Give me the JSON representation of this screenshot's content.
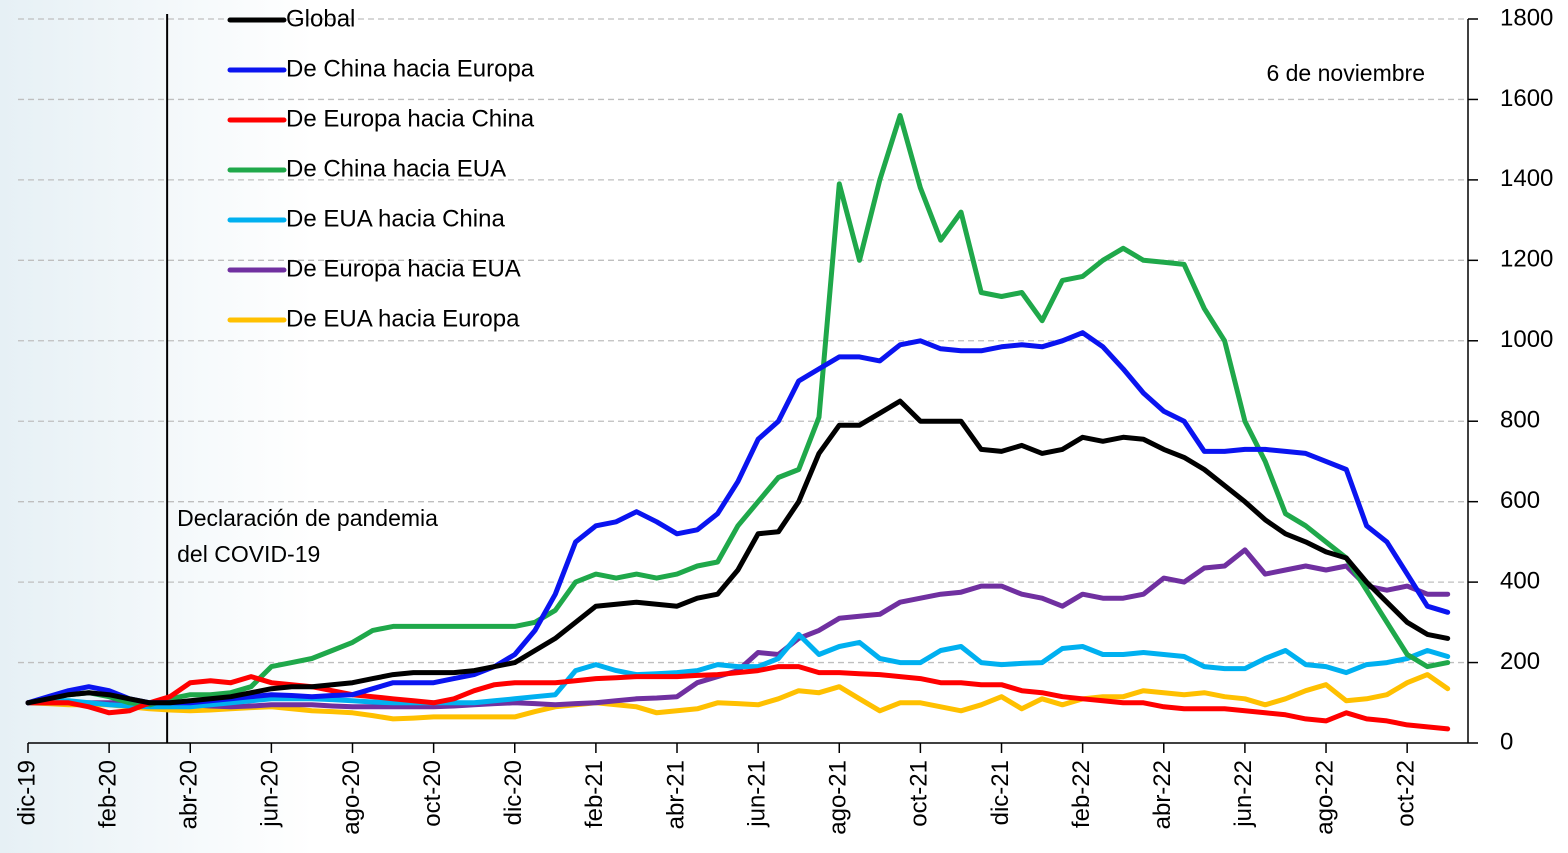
{
  "chart_data": {
    "type": "line",
    "x": [
      0,
      0.5,
      1,
      1.5,
      2,
      2.5,
      3,
      3.5,
      4,
      4.5,
      5,
      5.5,
      6,
      6.5,
      7,
      7.5,
      8,
      8.5,
      9,
      9.5,
      10,
      10.5,
      11,
      11.5,
      12,
      12.5,
      13,
      13.5,
      14,
      14.5,
      15,
      15.5,
      16,
      16.5,
      17,
      17.5,
      18,
      18.5,
      19,
      19.5,
      20,
      20.5,
      21,
      21.5,
      22,
      22.5,
      23,
      23.5,
      24,
      24.5,
      25,
      25.5,
      26,
      26.5,
      27,
      27.5,
      28,
      28.5,
      29,
      29.5,
      30,
      30.5,
      31,
      31.5,
      32,
      32.5,
      33,
      33.5,
      34,
      34.5,
      35
    ],
    "xlim": [
      0,
      35.5
    ],
    "xticks": [
      {
        "value": 0,
        "label": "dic-19"
      },
      {
        "value": 2,
        "label": "feb-20"
      },
      {
        "value": 4,
        "label": "abr-20"
      },
      {
        "value": 6,
        "label": "jun-20"
      },
      {
        "value": 8,
        "label": "ago-20"
      },
      {
        "value": 10,
        "label": "oct-20"
      },
      {
        "value": 12,
        "label": "dic-20"
      },
      {
        "value": 14,
        "label": "feb-21"
      },
      {
        "value": 16,
        "label": "abr-21"
      },
      {
        "value": 18,
        "label": "jun-21"
      },
      {
        "value": 20,
        "label": "ago-21"
      },
      {
        "value": 22,
        "label": "oct-21"
      },
      {
        "value": 24,
        "label": "dic-21"
      },
      {
        "value": 26,
        "label": "feb-22"
      },
      {
        "value": 28,
        "label": "abr-22"
      },
      {
        "value": 30,
        "label": "jun-22"
      },
      {
        "value": 32,
        "label": "ago-22"
      },
      {
        "value": 34,
        "label": "oct-22"
      }
    ],
    "ylim": [
      0,
      1800
    ],
    "yticks": [
      0,
      200,
      400,
      600,
      800,
      1000,
      1200,
      1400,
      1600,
      1800
    ],
    "y_axis_side": "right",
    "grid": true,
    "date_note": "6 de noviembre",
    "vline": {
      "x": 3.43,
      "label": [
        "Declaración de pandemia",
        "del COVID-19"
      ]
    },
    "series": [
      {
        "name": "Global",
        "color": "#000000",
        "values": [
          100,
          110,
          120,
          125,
          120,
          110,
          100,
          100,
          105,
          110,
          115,
          125,
          135,
          140,
          140,
          145,
          150,
          160,
          170,
          175,
          175,
          175,
          180,
          190,
          200,
          230,
          260,
          300,
          340,
          345,
          350,
          345,
          340,
          360,
          370,
          430,
          520,
          525,
          600,
          720,
          790,
          790,
          820,
          850,
          800,
          800,
          800,
          730,
          725,
          740,
          720,
          730,
          760,
          750,
          760,
          755,
          730,
          710,
          680,
          640,
          600,
          555,
          520,
          500,
          475,
          460,
          400,
          350,
          300,
          270,
          260
        ]
      },
      {
        "name": "De China hacia Europa",
        "color": "#0a14f0",
        "values": [
          100,
          115,
          130,
          140,
          130,
          110,
          100,
          100,
          100,
          105,
          110,
          115,
          120,
          118,
          115,
          118,
          120,
          135,
          150,
          150,
          150,
          160,
          170,
          190,
          220,
          280,
          370,
          500,
          540,
          550,
          575,
          550,
          520,
          530,
          570,
          650,
          755,
          800,
          900,
          930,
          960,
          960,
          950,
          990,
          1000,
          980,
          975,
          975,
          985,
          990,
          985,
          1000,
          1020,
          985,
          930,
          870,
          825,
          800,
          725,
          725,
          730,
          730,
          725,
          720,
          700,
          680,
          540,
          500,
          420,
          340,
          325
        ]
      },
      {
        "name": "De Europa hacia China",
        "color": "#ff0000",
        "values": [
          100,
          100,
          100,
          90,
          75,
          80,
          100,
          115,
          150,
          155,
          150,
          165,
          150,
          145,
          140,
          130,
          120,
          115,
          110,
          105,
          100,
          110,
          130,
          145,
          150,
          150,
          150,
          155,
          160,
          162,
          165,
          165,
          165,
          168,
          170,
          175,
          180,
          190,
          190,
          175,
          175,
          172,
          170,
          165,
          160,
          150,
          150,
          145,
          145,
          130,
          125,
          115,
          110,
          105,
          100,
          100,
          90,
          85,
          85,
          85,
          80,
          75,
          70,
          60,
          55,
          75,
          60,
          55,
          45,
          40,
          35
        ]
      },
      {
        "name": "De China hacia EUA",
        "color": "#1fa84a",
        "values": [
          100,
          110,
          120,
          125,
          115,
          100,
          95,
          110,
          120,
          120,
          125,
          140,
          190,
          200,
          210,
          230,
          250,
          280,
          290,
          290,
          290,
          290,
          290,
          290,
          290,
          300,
          330,
          400,
          420,
          410,
          420,
          410,
          420,
          440,
          450,
          540,
          600,
          660,
          680,
          810,
          1390,
          1200,
          1400,
          1560,
          1380,
          1250,
          1320,
          1120,
          1110,
          1120,
          1050,
          1150,
          1160,
          1200,
          1230,
          1200,
          1195,
          1190,
          1080,
          1000,
          800,
          700,
          570,
          540,
          500,
          460,
          380,
          300,
          220,
          190,
          200
        ]
      },
      {
        "name": "De EUA hacia China",
        "color": "#00b0f0",
        "values": [
          100,
          105,
          105,
          100,
          95,
          92,
          90,
          90,
          90,
          95,
          100,
          105,
          110,
          110,
          110,
          108,
          105,
          102,
          100,
          100,
          100,
          100,
          100,
          105,
          110,
          115,
          120,
          180,
          195,
          180,
          170,
          172,
          175,
          180,
          195,
          190,
          190,
          210,
          270,
          220,
          240,
          250,
          210,
          200,
          200,
          230,
          240,
          200,
          195,
          198,
          200,
          235,
          240,
          220,
          220,
          225,
          220,
          215,
          190,
          185,
          185,
          210,
          230,
          195,
          190,
          175,
          195,
          200,
          210,
          230,
          215
        ]
      },
      {
        "name": "De Europa hacia EUA",
        "color": "#7030a0",
        "values": [
          100,
          100,
          100,
          100,
          100,
          100,
          100,
          98,
          95,
          92,
          90,
          92,
          95,
          95,
          95,
          92,
          90,
          90,
          90,
          90,
          90,
          92,
          95,
          98,
          100,
          98,
          95,
          98,
          100,
          105,
          110,
          112,
          115,
          150,
          165,
          180,
          225,
          220,
          260,
          280,
          310,
          315,
          320,
          350,
          360,
          370,
          375,
          390,
          390,
          370,
          360,
          340,
          370,
          360,
          360,
          370,
          410,
          400,
          435,
          440,
          480,
          420,
          430,
          440,
          430,
          440,
          390,
          380,
          390,
          370,
          370
        ]
      },
      {
        "name": "De EUA hacia Europa",
        "color": "#ffc000",
        "values": [
          100,
          98,
          95,
          95,
          95,
          90,
          85,
          82,
          80,
          82,
          85,
          88,
          90,
          85,
          80,
          78,
          75,
          68,
          60,
          62,
          65,
          65,
          65,
          65,
          65,
          78,
          90,
          95,
          100,
          95,
          90,
          75,
          80,
          85,
          100,
          98,
          95,
          110,
          130,
          125,
          140,
          110,
          80,
          100,
          100,
          90,
          80,
          95,
          115,
          85,
          110,
          95,
          110,
          115,
          115,
          130,
          125,
          120,
          125,
          115,
          110,
          95,
          110,
          130,
          145,
          105,
          110,
          120,
          150,
          170,
          135
        ]
      }
    ]
  }
}
